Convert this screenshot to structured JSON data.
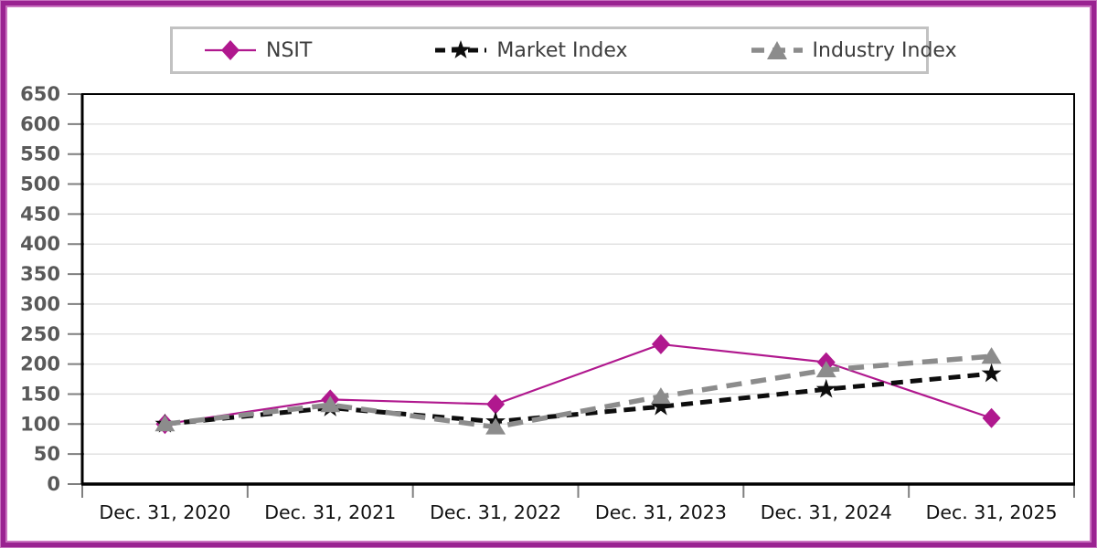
{
  "colors": {
    "frame_border": "#9A2391",
    "legend_border": "#C2C2C2",
    "gridline": "#DCDCDC",
    "tick": "#7F7F7F",
    "ytick_label": "#595959",
    "xtick_label": "#111111",
    "axis": "#000000"
  },
  "legend": {
    "items": [
      {
        "label": "NSIT",
        "marker": "diamond",
        "line": "solid",
        "color": "#B0188E"
      },
      {
        "label": "Market Index",
        "marker": "star",
        "line": "dashed",
        "color": "#0D0D0D"
      },
      {
        "label": "Industry Index",
        "marker": "triangle",
        "line": "dashed",
        "color": "#8C8C8C"
      }
    ]
  },
  "chart_data": {
    "type": "line",
    "title": "",
    "xlabel": "",
    "ylabel": "",
    "categories": [
      "Dec. 31, 2020",
      "Dec. 31, 2021",
      "Dec. 31, 2022",
      "Dec. 31, 2023",
      "Dec. 31, 2024",
      "Dec. 31, 2025"
    ],
    "series": [
      {
        "name": "NSIT",
        "marker": "diamond",
        "line_style": "solid",
        "line_width": 2.2,
        "dash": "",
        "color": "#B0188E",
        "values": [
          100,
          141,
          133,
          233,
          203,
          110
        ]
      },
      {
        "name": "Market Index",
        "marker": "star",
        "line_style": "dashed",
        "line_width": 5,
        "dash": "13 8",
        "color": "#0D0D0D",
        "values": [
          100,
          127,
          104,
          129,
          158,
          184
        ]
      },
      {
        "name": "Industry Index",
        "marker": "triangle",
        "line_style": "dashed",
        "line_width": 5.5,
        "dash": "17 10",
        "color": "#8C8C8C",
        "values": [
          100,
          132,
          95,
          146,
          190,
          213
        ]
      }
    ],
    "ylim": [
      0,
      650
    ],
    "ytick_step": 50,
    "yticks": [
      0,
      50,
      100,
      150,
      200,
      250,
      300,
      350,
      400,
      450,
      500,
      550,
      600,
      650
    ],
    "grid": true,
    "legend_position": "top"
  }
}
